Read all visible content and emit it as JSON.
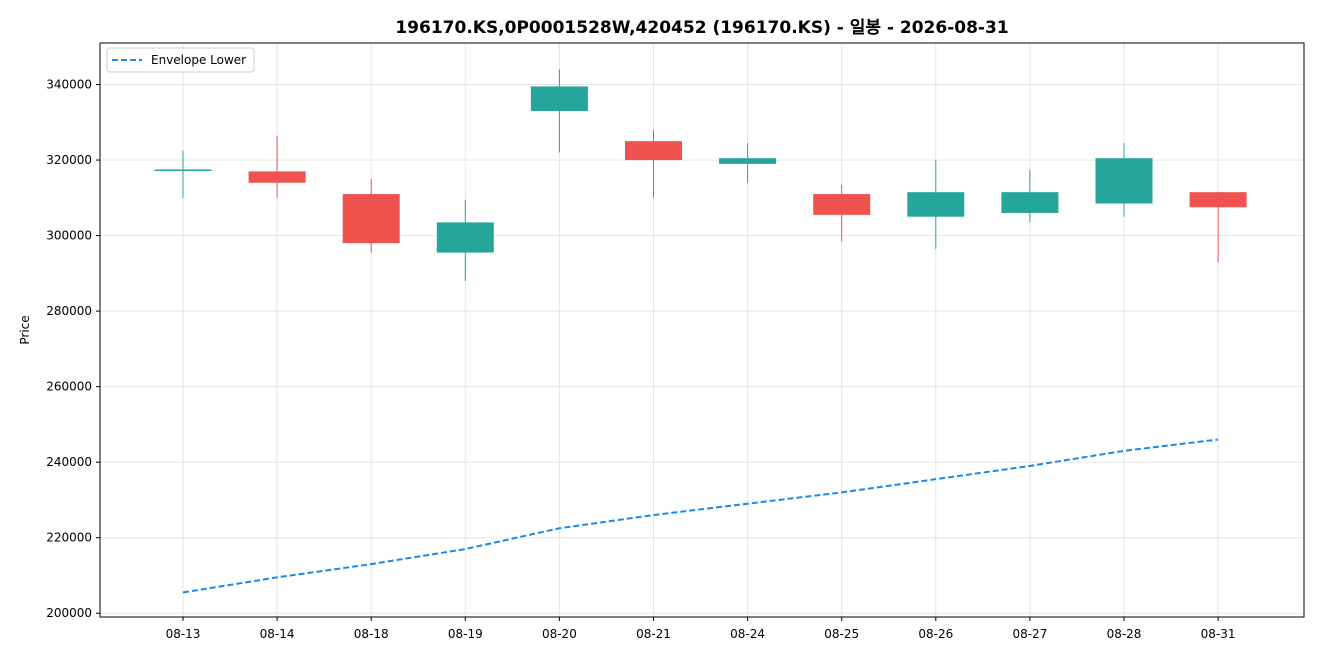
{
  "chart_data": {
    "type": "candlestick",
    "title": "196170.KS,0P0001528W,420452 (196170.KS) - 일봉 - 2026-08-31",
    "xlabel": "",
    "ylabel": "Price",
    "ylim": [
      199000,
      351000
    ],
    "yticks": [
      200000,
      220000,
      240000,
      260000,
      280000,
      300000,
      320000,
      340000
    ],
    "ytick_labels": [
      "200000",
      "220000",
      "240000",
      "260000",
      "280000",
      "300000",
      "320000",
      "340000"
    ],
    "grid": true,
    "legend_position": "top-left",
    "colors": {
      "up": "#26a69a",
      "down": "#ef5350",
      "envelope": "#1e88e5"
    },
    "categories": [
      "08-13",
      "08-14",
      "08-18",
      "08-19",
      "08-20",
      "08-21",
      "08-24",
      "08-25",
      "08-26",
      "08-27",
      "08-28",
      "08-31"
    ],
    "candles": [
      {
        "date": "08-13",
        "open": 317500,
        "high": 322500,
        "low": 310000,
        "close": 317500
      },
      {
        "date": "08-14",
        "open": 317000,
        "high": 326500,
        "low": 310000,
        "close": 314000
      },
      {
        "date": "08-18",
        "open": 311000,
        "high": 315000,
        "low": 295500,
        "close": 298000
      },
      {
        "date": "08-19",
        "open": 295500,
        "high": 309500,
        "low": 288000,
        "close": 303500
      },
      {
        "date": "08-20",
        "open": 333000,
        "high": 344000,
        "low": 322000,
        "close": 339500
      },
      {
        "date": "08-21",
        "open": 325000,
        "high": 328000,
        "low": 310000,
        "close": 320000
      },
      {
        "date": "08-24",
        "open": 319000,
        "high": 324500,
        "low": 314000,
        "close": 320500
      },
      {
        "date": "08-25",
        "open": 311000,
        "high": 313500,
        "low": 298500,
        "close": 305500
      },
      {
        "date": "08-26",
        "open": 305000,
        "high": 320000,
        "low": 296500,
        "close": 311500
      },
      {
        "date": "08-27",
        "open": 306000,
        "high": 317500,
        "low": 303500,
        "close": 311500
      },
      {
        "date": "08-28",
        "open": 308500,
        "high": 324500,
        "low": 305000,
        "close": 320500
      },
      {
        "date": "08-31",
        "open": 311500,
        "high": 311500,
        "low": 293000,
        "close": 307500
      }
    ],
    "series": [
      {
        "name": "Envelope Lower",
        "style": "dashed",
        "values": [
          205500,
          209500,
          213000,
          217000,
          222500,
          226000,
          229000,
          232000,
          235500,
          239000,
          243000,
          246000
        ]
      }
    ]
  }
}
